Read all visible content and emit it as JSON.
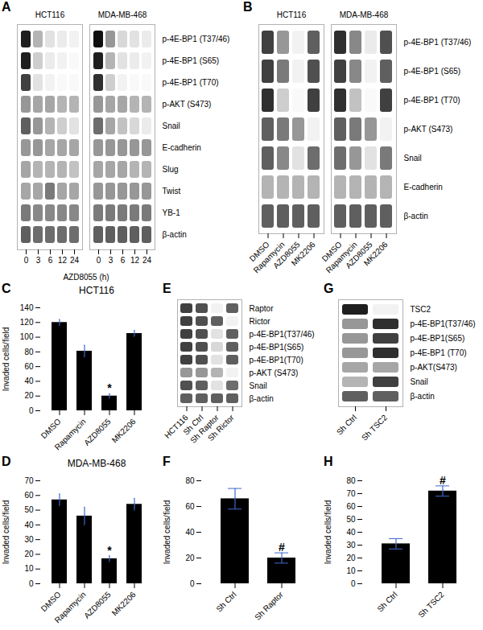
{
  "chart_data": [
    {
      "type": "heatmap",
      "annotations": [
        {
          "text": "A"
        }
      ],
      "xlabel": "AZD8055 (h)",
      "categories": [
        "0",
        "3",
        "6",
        "12",
        "24",
        "0",
        "3",
        "6",
        "12",
        "24"
      ],
      "groups": [
        "HCT116",
        "HCT116",
        "HCT116",
        "HCT116",
        "HCT116",
        "MDA-MB-468",
        "MDA-MB-468",
        "MDA-MB-468",
        "MDA-MB-468",
        "MDA-MB-468"
      ],
      "rows": [
        "p-4E-BP1 (T37/46)",
        "p-4E-BP1 (S65)",
        "p-4E-BP1 (T70)",
        "p-AKT (S473)",
        "Snail",
        "E-cadherin",
        "Slug",
        "Twist",
        "YB-1",
        "β-actin"
      ],
      "cells": [
        [
          0.9,
          0.4,
          0.2,
          0.15,
          0.1,
          0.95,
          0.5,
          0.25,
          0.2,
          0.15
        ],
        [
          0.9,
          0.3,
          0.15,
          0.1,
          0.05,
          0.9,
          0.4,
          0.2,
          0.15,
          0.1
        ],
        [
          0.8,
          0.2,
          0.1,
          0.05,
          0.05,
          0.85,
          0.3,
          0.1,
          0.05,
          0.05
        ],
        [
          0.5,
          0.45,
          0.45,
          0.4,
          0.4,
          0.5,
          0.45,
          0.45,
          0.4,
          0.4
        ],
        [
          0.7,
          0.5,
          0.4,
          0.3,
          0.2,
          0.65,
          0.45,
          0.35,
          0.25,
          0.15
        ],
        [
          0.5,
          0.5,
          0.45,
          0.45,
          0.45,
          0.5,
          0.5,
          0.5,
          0.5,
          0.5
        ],
        [
          0.45,
          0.4,
          0.4,
          0.4,
          0.35,
          0.45,
          0.45,
          0.45,
          0.4,
          0.4
        ],
        [
          0.45,
          0.45,
          0.6,
          0.45,
          0.45,
          0.5,
          0.5,
          0.5,
          0.5,
          0.5
        ],
        [
          0.6,
          0.55,
          0.55,
          0.55,
          0.55,
          0.6,
          0.6,
          0.6,
          0.6,
          0.6
        ],
        [
          0.7,
          0.65,
          0.65,
          0.65,
          0.65,
          0.7,
          0.7,
          0.7,
          0.7,
          0.7
        ]
      ],
      "clim": [
        0,
        1
      ]
    },
    {
      "type": "heatmap",
      "annotations": [
        {
          "text": "B"
        }
      ],
      "categories": [
        "DMSO",
        "Rapamycin",
        "AZD8055",
        "MK2206",
        "DMSO",
        "Rapamycin",
        "AZD8055",
        "MK2206"
      ],
      "groups": [
        "HCT116",
        "HCT116",
        "HCT116",
        "HCT116",
        "MDA-MB-468",
        "MDA-MB-468",
        "MDA-MB-468",
        "MDA-MB-468"
      ],
      "rows": [
        "p-4E-BP1 (T37/46)",
        "p-4E-BP1 (S65)",
        "p-4E-BP1 (T70)",
        "p-AKT (S473)",
        "Snail",
        "E-cadherin",
        "β-actin"
      ],
      "cells": [
        [
          0.8,
          0.5,
          0.1,
          0.7,
          0.85,
          0.55,
          0.15,
          0.75
        ],
        [
          0.8,
          0.6,
          0.1,
          0.75,
          0.8,
          0.55,
          0.1,
          0.7
        ],
        [
          0.85,
          0.3,
          0.05,
          0.8,
          0.85,
          0.35,
          0.05,
          0.8
        ],
        [
          0.7,
          0.6,
          0.5,
          0.1,
          0.7,
          0.6,
          0.5,
          0.1
        ],
        [
          0.7,
          0.55,
          0.2,
          0.65,
          0.65,
          0.5,
          0.2,
          0.6
        ],
        [
          0.4,
          0.4,
          0.4,
          0.4,
          0.4,
          0.4,
          0.4,
          0.4
        ],
        [
          0.7,
          0.7,
          0.7,
          0.7,
          0.7,
          0.7,
          0.7,
          0.7
        ]
      ],
      "clim": [
        0,
        1
      ]
    },
    {
      "type": "bar",
      "title": "HCT116",
      "annotations": [
        {
          "text": "C"
        },
        {
          "text": "*",
          "category": "AZD8055"
        }
      ],
      "ylabel": "Invaded cells/field",
      "categories": [
        "DMSO",
        "Rapamycin",
        "AZD8055",
        "MK2206"
      ],
      "values": [
        120,
        81,
        20,
        105
      ],
      "errors": [
        4,
        8,
        3,
        4
      ],
      "color": "#000000",
      "ylim": [
        0,
        140
      ],
      "yticks": [
        0,
        20,
        40,
        60,
        80,
        100,
        120,
        140
      ],
      "grid": false
    },
    {
      "type": "bar",
      "title": "MDA-MB-468",
      "annotations": [
        {
          "text": "D"
        },
        {
          "text": "*",
          "category": "AZD8055"
        }
      ],
      "ylabel": "Invaded cells/field",
      "categories": [
        "DMSO",
        "Rapamycin",
        "AZD8055",
        "MK2206"
      ],
      "values": [
        57,
        46,
        17,
        54
      ],
      "errors": [
        4,
        6,
        2,
        4
      ],
      "color": "#000000",
      "ylim": [
        0,
        70
      ],
      "yticks": [
        0,
        10,
        20,
        30,
        40,
        50,
        60,
        70
      ],
      "grid": false
    },
    {
      "type": "heatmap",
      "annotations": [
        {
          "text": "E"
        }
      ],
      "categories": [
        "HCT116",
        "Sh Ctrl",
        "Sh Raptor",
        "Sh Rictor"
      ],
      "rows": [
        "Raptor",
        "Rictor",
        "p-4E-BP1(T37/46)",
        "p-4E-BP1(S65)",
        "p-4E-BP1(T70)",
        "p-AKT (S473)",
        "Snail",
        "β-actin"
      ],
      "cells": [
        [
          0.8,
          0.75,
          0.1,
          0.7
        ],
        [
          0.8,
          0.75,
          0.7,
          0.1
        ],
        [
          0.8,
          0.75,
          0.2,
          0.7
        ],
        [
          0.8,
          0.75,
          0.25,
          0.7
        ],
        [
          0.8,
          0.75,
          0.2,
          0.7
        ],
        [
          0.5,
          0.5,
          0.4,
          0.1
        ],
        [
          0.75,
          0.7,
          0.2,
          0.65
        ],
        [
          0.7,
          0.7,
          0.7,
          0.7
        ]
      ],
      "clim": [
        0,
        1
      ]
    },
    {
      "type": "bar",
      "annotations": [
        {
          "text": "F"
        },
        {
          "text": "#",
          "category": "Sh Raptor"
        }
      ],
      "ylabel": "Invaded cells/field",
      "categories": [
        "Sh Ctrl",
        "Sh Raptor"
      ],
      "values": [
        66,
        20
      ],
      "errors": [
        8,
        4
      ],
      "color": "#000000",
      "ylim": [
        0,
        80
      ],
      "yticks": [
        0,
        20,
        40,
        60,
        80
      ],
      "grid": false
    },
    {
      "type": "heatmap",
      "annotations": [
        {
          "text": "G"
        }
      ],
      "categories": [
        "Sh Ctrl",
        "Sh TSC2"
      ],
      "rows": [
        "TSC2",
        "p-4E-BP1(T37/46)",
        "p-4E-BP1(S65)",
        "p-4E-BP1 (T70)",
        "p-AKT(S473)",
        "Snail",
        "β-actin"
      ],
      "cells": [
        [
          0.9,
          0.1
        ],
        [
          0.5,
          0.85
        ],
        [
          0.5,
          0.8
        ],
        [
          0.5,
          0.85
        ],
        [
          0.45,
          0.45
        ],
        [
          0.4,
          0.8
        ],
        [
          0.7,
          0.7
        ]
      ],
      "clim": [
        0,
        1
      ]
    },
    {
      "type": "bar",
      "annotations": [
        {
          "text": "H"
        },
        {
          "text": "#",
          "category": "Sh TSC2"
        }
      ],
      "ylabel": "Invaded cells/field",
      "categories": [
        "Sh Ctrl",
        "Sh TSC2"
      ],
      "values": [
        31,
        72
      ],
      "errors": [
        4,
        4
      ],
      "color": "#000000",
      "ylim": [
        0,
        80
      ],
      "yticks": [
        0,
        10,
        20,
        30,
        40,
        50,
        60,
        70,
        80
      ],
      "grid": false
    }
  ]
}
